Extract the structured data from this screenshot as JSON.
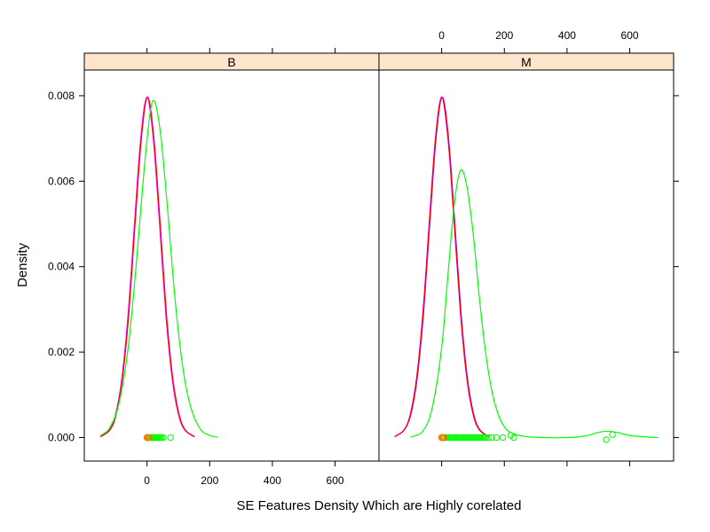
{
  "chart_data": {
    "type": "line",
    "subtype": "lattice densityplot",
    "xlabel": "SE Features Density Which are Highly corelated",
    "ylabel": "Density",
    "xlim": [
      -200,
      740
    ],
    "ylim": [
      -0.00055,
      0.0086
    ],
    "x_ticks": [
      0,
      200,
      400,
      600
    ],
    "y_ticks": [
      0.0,
      0.002,
      0.004,
      0.006,
      0.008
    ],
    "y_tick_labels": [
      "0.000",
      "0.002",
      "0.004",
      "0.006",
      "0.008"
    ],
    "grid": false,
    "colors": {
      "strip": "#ffe5cc",
      "green": "#00ff00",
      "red": "#ff0000",
      "orange": "#ff8000",
      "purple": "#8000ff",
      "magenta": "#ff00ff"
    },
    "panels": [
      {
        "label": "B",
        "curves": [
          {
            "color": "#ff00ff",
            "peak_x": 0,
            "peak_y": 0.00797,
            "points": [
              [
                -150,
                2e-05
              ],
              [
                -120,
                0.00018
              ],
              [
                -100,
                0.00055
              ],
              [
                -80,
                0.0014
              ],
              [
                -60,
                0.0029
              ],
              [
                -40,
                0.005
              ],
              [
                -20,
                0.007
              ],
              [
                0,
                0.00797
              ],
              [
                20,
                0.007
              ],
              [
                40,
                0.005
              ],
              [
                60,
                0.0029
              ],
              [
                80,
                0.0014
              ],
              [
                100,
                0.00055
              ],
              [
                120,
                0.00018
              ],
              [
                150,
                2e-05
              ]
            ]
          },
          {
            "color": "#ff0000",
            "peak_x": 2,
            "peak_y": 0.00797,
            "points": [
              [
                -148,
                2e-05
              ],
              [
                -118,
                0.00018
              ],
              [
                -98,
                0.00055
              ],
              [
                -78,
                0.0014
              ],
              [
                -58,
                0.0029
              ],
              [
                -38,
                0.005
              ],
              [
                -18,
                0.007
              ],
              [
                2,
                0.00797
              ],
              [
                22,
                0.007
              ],
              [
                42,
                0.005
              ],
              [
                62,
                0.0029
              ],
              [
                82,
                0.0014
              ],
              [
                102,
                0.00055
              ],
              [
                122,
                0.00018
              ],
              [
                152,
                2e-05
              ]
            ]
          },
          {
            "color": "#00ff00",
            "peak_x": 25,
            "peak_y": 0.00785,
            "points": [
              [
                -148,
                5e-05
              ],
              [
                -120,
                0.00022
              ],
              [
                -90,
                0.00078
              ],
              [
                -60,
                0.0021
              ],
              [
                -35,
                0.004
              ],
              [
                -10,
                0.0062
              ],
              [
                10,
                0.0076
              ],
              [
                25,
                0.00785
              ],
              [
                45,
                0.007
              ],
              [
                65,
                0.0054
              ],
              [
                90,
                0.0032
              ],
              [
                115,
                0.0016
              ],
              [
                140,
                0.0007
              ],
              [
                170,
                0.0002
              ],
              [
                200,
                5e-05
              ],
              [
                225,
                1e-05
              ]
            ]
          }
        ],
        "rug": {
          "red": [
            0,
            1,
            2,
            3,
            4,
            5
          ],
          "orange": [
            0,
            1,
            2,
            3,
            4
          ],
          "green": [
            6,
            9,
            12,
            15,
            18,
            20,
            22,
            24,
            26,
            28,
            30,
            32,
            35,
            38,
            42,
            46,
            52,
            75
          ]
        }
      },
      {
        "label": "M",
        "curves": [
          {
            "color": "#8000ff",
            "peak_x": 2,
            "peak_y": 0.00797,
            "points": [
              [
                -150,
                2e-05
              ],
              [
                -120,
                0.00018
              ],
              [
                -98,
                0.00055
              ],
              [
                -78,
                0.0014
              ],
              [
                -58,
                0.0029
              ],
              [
                -38,
                0.005
              ],
              [
                -18,
                0.007
              ],
              [
                2,
                0.00797
              ],
              [
                22,
                0.007
              ],
              [
                42,
                0.005
              ],
              [
                62,
                0.0029
              ],
              [
                82,
                0.0014
              ],
              [
                102,
                0.00055
              ],
              [
                122,
                0.00018
              ],
              [
                152,
                2e-05
              ]
            ]
          },
          {
            "color": "#ff00ff",
            "peak_x": 0,
            "peak_y": 0.00797,
            "points": [
              [
                -150,
                2e-05
              ],
              [
                -120,
                0.00018
              ],
              [
                -100,
                0.00055
              ],
              [
                -80,
                0.0014
              ],
              [
                -60,
                0.0029
              ],
              [
                -40,
                0.005
              ],
              [
                -20,
                0.007
              ],
              [
                0,
                0.00797
              ],
              [
                20,
                0.007
              ],
              [
                40,
                0.005
              ],
              [
                60,
                0.0029
              ],
              [
                80,
                0.0014
              ],
              [
                100,
                0.00055
              ],
              [
                120,
                0.00018
              ],
              [
                150,
                2e-05
              ]
            ]
          },
          {
            "color": "#ff0000",
            "peak_x": 1,
            "peak_y": 0.00795,
            "points": [
              [
                -149,
                2e-05
              ],
              [
                -119,
                0.00018
              ],
              [
                -99,
                0.00055
              ],
              [
                -79,
                0.0014
              ],
              [
                -59,
                0.0029
              ],
              [
                -39,
                0.005
              ],
              [
                -19,
                0.007
              ],
              [
                1,
                0.00795
              ],
              [
                21,
                0.007
              ],
              [
                41,
                0.005
              ],
              [
                61,
                0.0029
              ],
              [
                81,
                0.0014
              ],
              [
                101,
                0.00055
              ],
              [
                121,
                0.00018
              ],
              [
                151,
                2e-05
              ]
            ]
          },
          {
            "color": "#00ff00",
            "peak_x": 60,
            "peak_y": 0.00625,
            "points": [
              [
                -100,
                1e-05
              ],
              [
                -60,
                0.00015
              ],
              [
                -30,
                0.0007
              ],
              [
                0,
                0.0021
              ],
              [
                20,
                0.0038
              ],
              [
                40,
                0.00545
              ],
              [
                60,
                0.00625
              ],
              [
                80,
                0.0059
              ],
              [
                100,
                0.0048
              ],
              [
                120,
                0.0033
              ],
              [
                140,
                0.002
              ],
              [
                160,
                0.0011
              ],
              [
                180,
                0.00055
              ],
              [
                200,
                0.00025
              ],
              [
                220,
                0.00012
              ],
              [
                260,
                3e-05
              ],
              [
                320,
                0.0
              ],
              [
                400,
                0.0
              ],
              [
                460,
                4e-05
              ],
              [
                500,
                0.00012
              ],
              [
                530,
                0.00015
              ],
              [
                560,
                0.00012
              ],
              [
                600,
                5e-05
              ],
              [
                660,
                1e-05
              ],
              [
                690,
                0.0
              ]
            ]
          }
        ],
        "rug": {
          "red": [
            0,
            1,
            2,
            3,
            4,
            5,
            6
          ],
          "orange": [
            0,
            1,
            2,
            3,
            4
          ],
          "green": [
            10,
            15,
            20,
            25,
            30,
            35,
            40,
            45,
            50,
            55,
            60,
            65,
            70,
            75,
            80,
            85,
            90,
            95,
            100,
            105,
            110,
            115,
            120,
            125,
            130,
            135,
            140,
            150,
            160,
            175,
            195,
            220,
            230,
            525,
            545
          ],
          "green_y_offsets": {
            "220": 5e-05,
            "525": -5e-05,
            "545": 7e-05
          }
        }
      }
    ]
  }
}
